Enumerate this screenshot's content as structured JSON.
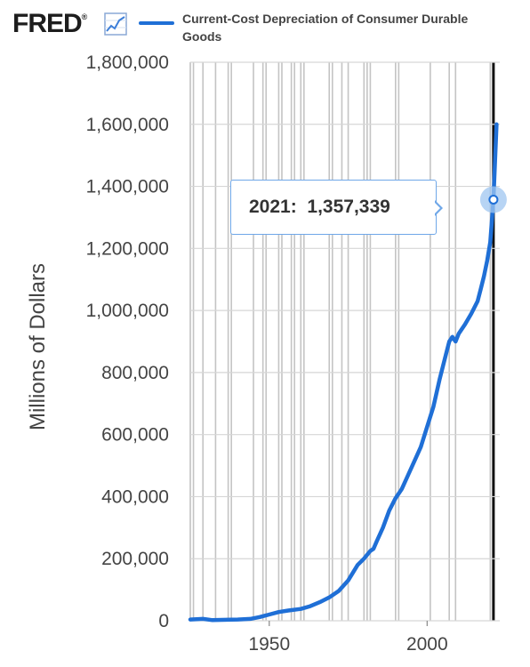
{
  "header": {
    "logo_text": "FRED",
    "logo_mark": "®",
    "legend_label": "Current-Cost Depreciation of Consumer Durable Goods",
    "graph_icon": "line-graph-icon"
  },
  "tooltip": {
    "year": "2021:",
    "value": "1,357,339"
  },
  "colors": {
    "series": "#1f6fd6",
    "grid": "#c4c4c4",
    "axis_text": "#444444",
    "tooltip_border": "#6fa7e8",
    "marker": "#9fc5f0"
  },
  "chart_data": {
    "type": "line",
    "title": "",
    "xlabel": "",
    "ylabel": "Millions of Dollars",
    "xlim": [
      1925,
      2023
    ],
    "ylim": [
      0,
      1800000
    ],
    "x_ticks": [
      "1950",
      "2000"
    ],
    "y_ticks": [
      "0",
      "200,000",
      "400,000",
      "600,000",
      "800,000",
      "1,000,000",
      "1,200,000",
      "1,400,000",
      "1,600,000",
      "1,800,000"
    ],
    "legend": "top",
    "grid": true,
    "highlight": {
      "x": 2021,
      "y": 1357339
    },
    "recession_lines": [
      1926,
      1929,
      1933,
      1937,
      1938,
      1945,
      1948,
      1949,
      1953,
      1954,
      1957,
      1958,
      1960,
      1961,
      1969,
      1970,
      1973,
      1975,
      1980,
      1981,
      1982,
      1990,
      1991,
      2001,
      2007,
      2009,
      2020
    ],
    "series": [
      {
        "name": "Current-Cost Depreciation of Consumer Durable Goods",
        "x": [
          1925,
          1929,
          1932,
          1935,
          1940,
          1944,
          1947,
          1950,
          1953,
          1956,
          1960,
          1963,
          1966,
          1969,
          1972,
          1975,
          1978,
          1980,
          1982,
          1983,
          1984,
          1986,
          1988,
          1990,
          1992,
          1994,
          1996,
          1998,
          2000,
          2002,
          2004,
          2006,
          2007,
          2008,
          2009,
          2010,
          2012,
          2014,
          2016,
          2017,
          2018,
          2019,
          2020,
          2021,
          2022
        ],
        "y": [
          4000,
          6000,
          2000,
          3000,
          4000,
          6000,
          12000,
          20000,
          28000,
          33000,
          38000,
          47000,
          60000,
          75000,
          96000,
          130000,
          180000,
          200000,
          225000,
          232000,
          255000,
          300000,
          355000,
          395000,
          425000,
          470000,
          515000,
          560000,
          625000,
          690000,
          780000,
          860000,
          900000,
          915000,
          900000,
          925000,
          955000,
          990000,
          1030000,
          1070000,
          1110000,
          1160000,
          1220000,
          1357339,
          1600000
        ]
      }
    ]
  }
}
